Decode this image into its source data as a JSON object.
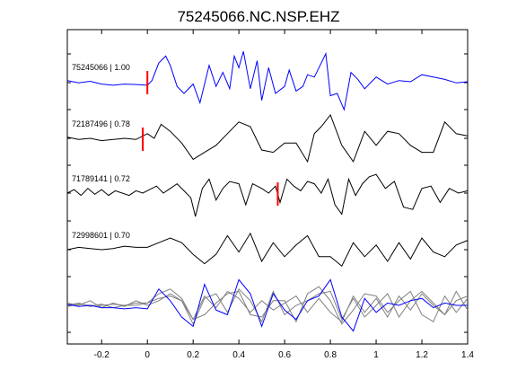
{
  "chart_data": {
    "type": "line",
    "title": "75245066.NC.NSP.EHZ",
    "xlabel": "",
    "ylabel": "",
    "xlim": [
      -0.35,
      1.4
    ],
    "x_ticks": [
      -0.2,
      0,
      0.2,
      0.4,
      0.6,
      0.8,
      1,
      1.2,
      1.4
    ],
    "x_tick_labels": [
      "-0.2",
      "0",
      "0.2",
      "0.4",
      "0.6",
      "0.8",
      "1",
      "1.2",
      "1.4"
    ],
    "grid": false,
    "colors": {
      "reference": "#0000ff",
      "match": "#000000",
      "stack": "#808080",
      "pick": "#ff0000"
    },
    "traces": [
      {
        "label": "75245066 | 1.00",
        "color": "#0000ff",
        "pick_time": 0.0,
        "x": [
          -0.35,
          -0.3,
          -0.25,
          -0.2,
          -0.15,
          -0.1,
          -0.05,
          0.0,
          0.02,
          0.05,
          0.08,
          0.1,
          0.13,
          0.16,
          0.2,
          0.23,
          0.27,
          0.3,
          0.33,
          0.36,
          0.38,
          0.4,
          0.42,
          0.45,
          0.48,
          0.5,
          0.53,
          0.56,
          0.6,
          0.62,
          0.65,
          0.68,
          0.7,
          0.73,
          0.76,
          0.78,
          0.8,
          0.83,
          0.86,
          0.89,
          0.92,
          0.95,
          1.0,
          1.05,
          1.1,
          1.15,
          1.2,
          1.25,
          1.3,
          1.35,
          1.4
        ],
        "y": [
          0.05,
          -0.05,
          0.02,
          -0.1,
          -0.15,
          -0.1,
          -0.12,
          -0.15,
          0.05,
          0.8,
          1.1,
          0.7,
          -0.2,
          -0.5,
          -0.1,
          -0.9,
          0.7,
          -0.2,
          0.4,
          -0.3,
          1.1,
          0.6,
          1.3,
          -0.3,
          0.9,
          -0.8,
          0.6,
          -0.5,
          -0.2,
          0.5,
          -0.4,
          -0.2,
          0.3,
          0.2,
          0.8,
          1.2,
          -0.6,
          -0.5,
          -1.2,
          0.4,
          0.1,
          -0.3,
          0.2,
          -0.1,
          0.05,
          0.0,
          0.3,
          0.2,
          0.1,
          -0.05,
          0.0
        ]
      },
      {
        "label": "72187496 | 0.78",
        "color": "#000000",
        "pick_time": -0.02,
        "x": [
          -0.35,
          -0.3,
          -0.25,
          -0.2,
          -0.15,
          -0.1,
          -0.05,
          0.0,
          0.03,
          0.06,
          0.1,
          0.15,
          0.2,
          0.25,
          0.3,
          0.35,
          0.4,
          0.45,
          0.5,
          0.55,
          0.6,
          0.65,
          0.7,
          0.73,
          0.76,
          0.8,
          0.85,
          0.9,
          0.95,
          1.0,
          1.05,
          1.1,
          1.15,
          1.2,
          1.25,
          1.3,
          1.35,
          1.4
        ],
        "y": [
          0.05,
          -0.05,
          0.0,
          -0.1,
          -0.05,
          0.0,
          -0.05,
          0.2,
          0.0,
          0.6,
          0.3,
          -0.2,
          -0.9,
          -0.6,
          -0.3,
          0.2,
          0.7,
          0.5,
          -0.5,
          -0.6,
          -0.2,
          -0.2,
          -1.0,
          0.2,
          0.5,
          1.0,
          -0.3,
          -1.0,
          0.3,
          -0.3,
          0.3,
          0.2,
          -0.3,
          -0.6,
          -0.6,
          0.7,
          0.2,
          0.1
        ]
      },
      {
        "label": "71789141 | 0.72",
        "color": "#000000",
        "pick_time": 0.57,
        "x": [
          -0.35,
          -0.32,
          -0.29,
          -0.26,
          -0.23,
          -0.2,
          -0.17,
          -0.14,
          -0.11,
          -0.08,
          -0.05,
          -0.02,
          0.01,
          0.04,
          0.07,
          0.1,
          0.13,
          0.16,
          0.19,
          0.21,
          0.24,
          0.27,
          0.3,
          0.33,
          0.36,
          0.4,
          0.43,
          0.46,
          0.5,
          0.53,
          0.56,
          0.58,
          0.61,
          0.64,
          0.67,
          0.7,
          0.73,
          0.76,
          0.79,
          0.82,
          0.85,
          0.88,
          0.91,
          0.94,
          0.97,
          1.0,
          1.04,
          1.08,
          1.12,
          1.16,
          1.2,
          1.24,
          1.28,
          1.32,
          1.36,
          1.4
        ],
        "y": [
          0.0,
          0.15,
          -0.1,
          0.2,
          -0.05,
          0.15,
          -0.1,
          0.1,
          0.0,
          -0.1,
          0.1,
          0.0,
          0.15,
          0.3,
          0.0,
          0.2,
          0.4,
          0.1,
          -0.2,
          -1.0,
          0.2,
          0.6,
          -0.3,
          0.2,
          0.5,
          0.4,
          -0.5,
          0.4,
          0.2,
          0.0,
          0.3,
          -0.4,
          0.6,
          0.3,
          0.1,
          0.5,
          0.4,
          0.0,
          0.6,
          -0.5,
          -0.9,
          0.6,
          -0.1,
          0.4,
          0.7,
          0.8,
          0.2,
          0.5,
          -0.6,
          -0.7,
          0.2,
          0.3,
          -0.4,
          0.2,
          0.0,
          0.1
        ]
      },
      {
        "label": "72998601 | 0.70",
        "color": "#000000",
        "pick_time": null,
        "x": [
          -0.35,
          -0.3,
          -0.25,
          -0.2,
          -0.15,
          -0.1,
          -0.05,
          0.0,
          0.05,
          0.1,
          0.15,
          0.2,
          0.25,
          0.3,
          0.35,
          0.4,
          0.45,
          0.5,
          0.55,
          0.6,
          0.65,
          0.7,
          0.75,
          0.8,
          0.85,
          0.9,
          0.95,
          1.0,
          1.05,
          1.1,
          1.15,
          1.2,
          1.25,
          1.3,
          1.35,
          1.4
        ],
        "y": [
          0.0,
          0.1,
          0.05,
          0.0,
          0.05,
          0.15,
          0.1,
          0.1,
          0.3,
          0.5,
          0.3,
          -0.2,
          -0.6,
          -0.2,
          0.6,
          -0.1,
          0.7,
          -0.5,
          0.3,
          -0.3,
          0.2,
          0.6,
          -0.3,
          -0.3,
          -0.7,
          0.3,
          -0.3,
          0.2,
          -0.5,
          0.3,
          -0.4,
          0.5,
          -0.1,
          -0.3,
          0.2,
          0.4
        ]
      }
    ],
    "overlay": {
      "description_color_key": "stack",
      "x": [
        -0.35,
        -0.3,
        -0.25,
        -0.2,
        -0.15,
        -0.1,
        -0.05,
        0.0,
        0.05,
        0.1,
        0.15,
        0.2,
        0.25,
        0.3,
        0.35,
        0.4,
        0.45,
        0.5,
        0.55,
        0.6,
        0.65,
        0.7,
        0.75,
        0.8,
        0.85,
        0.9,
        0.95,
        1.0,
        1.05,
        1.1,
        1.15,
        1.2,
        1.25,
        1.3,
        1.35,
        1.4
      ],
      "series": [
        {
          "color": "#0000ff",
          "y": [
            0.05,
            -0.05,
            0.0,
            -0.1,
            -0.1,
            -0.15,
            -0.1,
            -0.15,
            0.7,
            0.2,
            -0.5,
            -0.9,
            0.9,
            -0.2,
            -0.4,
            1.1,
            0.5,
            -0.9,
            0.5,
            -0.2,
            -0.6,
            0.2,
            0.4,
            1.1,
            -0.5,
            -1.1,
            0.3,
            -0.3,
            0.1,
            0.0,
            0.2,
            0.3,
            -0.1,
            0.1,
            0.0,
            0.0
          ]
        },
        {
          "color": "#808080",
          "y": [
            0.0,
            0.1,
            -0.05,
            0.05,
            -0.1,
            0.0,
            0.1,
            0.1,
            0.5,
            0.7,
            0.3,
            -0.6,
            -0.4,
            0.1,
            0.5,
            0.6,
            -0.4,
            -0.5,
            0.2,
            0.2,
            -0.7,
            0.5,
            0.8,
            0.2,
            -0.8,
            -0.2,
            0.5,
            0.4,
            -0.3,
            0.2,
            0.6,
            -0.4,
            -0.7,
            0.4,
            -0.3,
            0.3
          ]
        },
        {
          "color": "#808080",
          "y": [
            0.1,
            0.0,
            0.2,
            -0.1,
            0.1,
            -0.05,
            0.2,
            0.0,
            0.2,
            0.5,
            0.2,
            -0.8,
            0.3,
            0.5,
            -0.3,
            0.7,
            0.2,
            -0.7,
            0.6,
            -0.4,
            0.0,
            0.2,
            0.5,
            0.6,
            -0.6,
            0.3,
            -0.5,
            0.0,
            0.5,
            -0.5,
            0.2,
            0.6,
            0.1,
            -0.4,
            0.6,
            -0.2
          ]
        },
        {
          "color": "#808080",
          "y": [
            -0.05,
            0.05,
            0.0,
            0.0,
            0.05,
            0.0,
            0.0,
            0.1,
            0.3,
            0.4,
            0.2,
            -0.6,
            0.4,
            -0.1,
            0.6,
            0.3,
            -0.3,
            0.2,
            -0.2,
            0.1,
            0.4,
            -0.3,
            0.3,
            -0.3,
            -0.7,
            0.4,
            -0.3,
            0.3,
            -0.5,
            0.4,
            -0.2,
            0.5,
            0.0,
            -0.4,
            0.2,
            0.4
          ]
        }
      ]
    }
  }
}
